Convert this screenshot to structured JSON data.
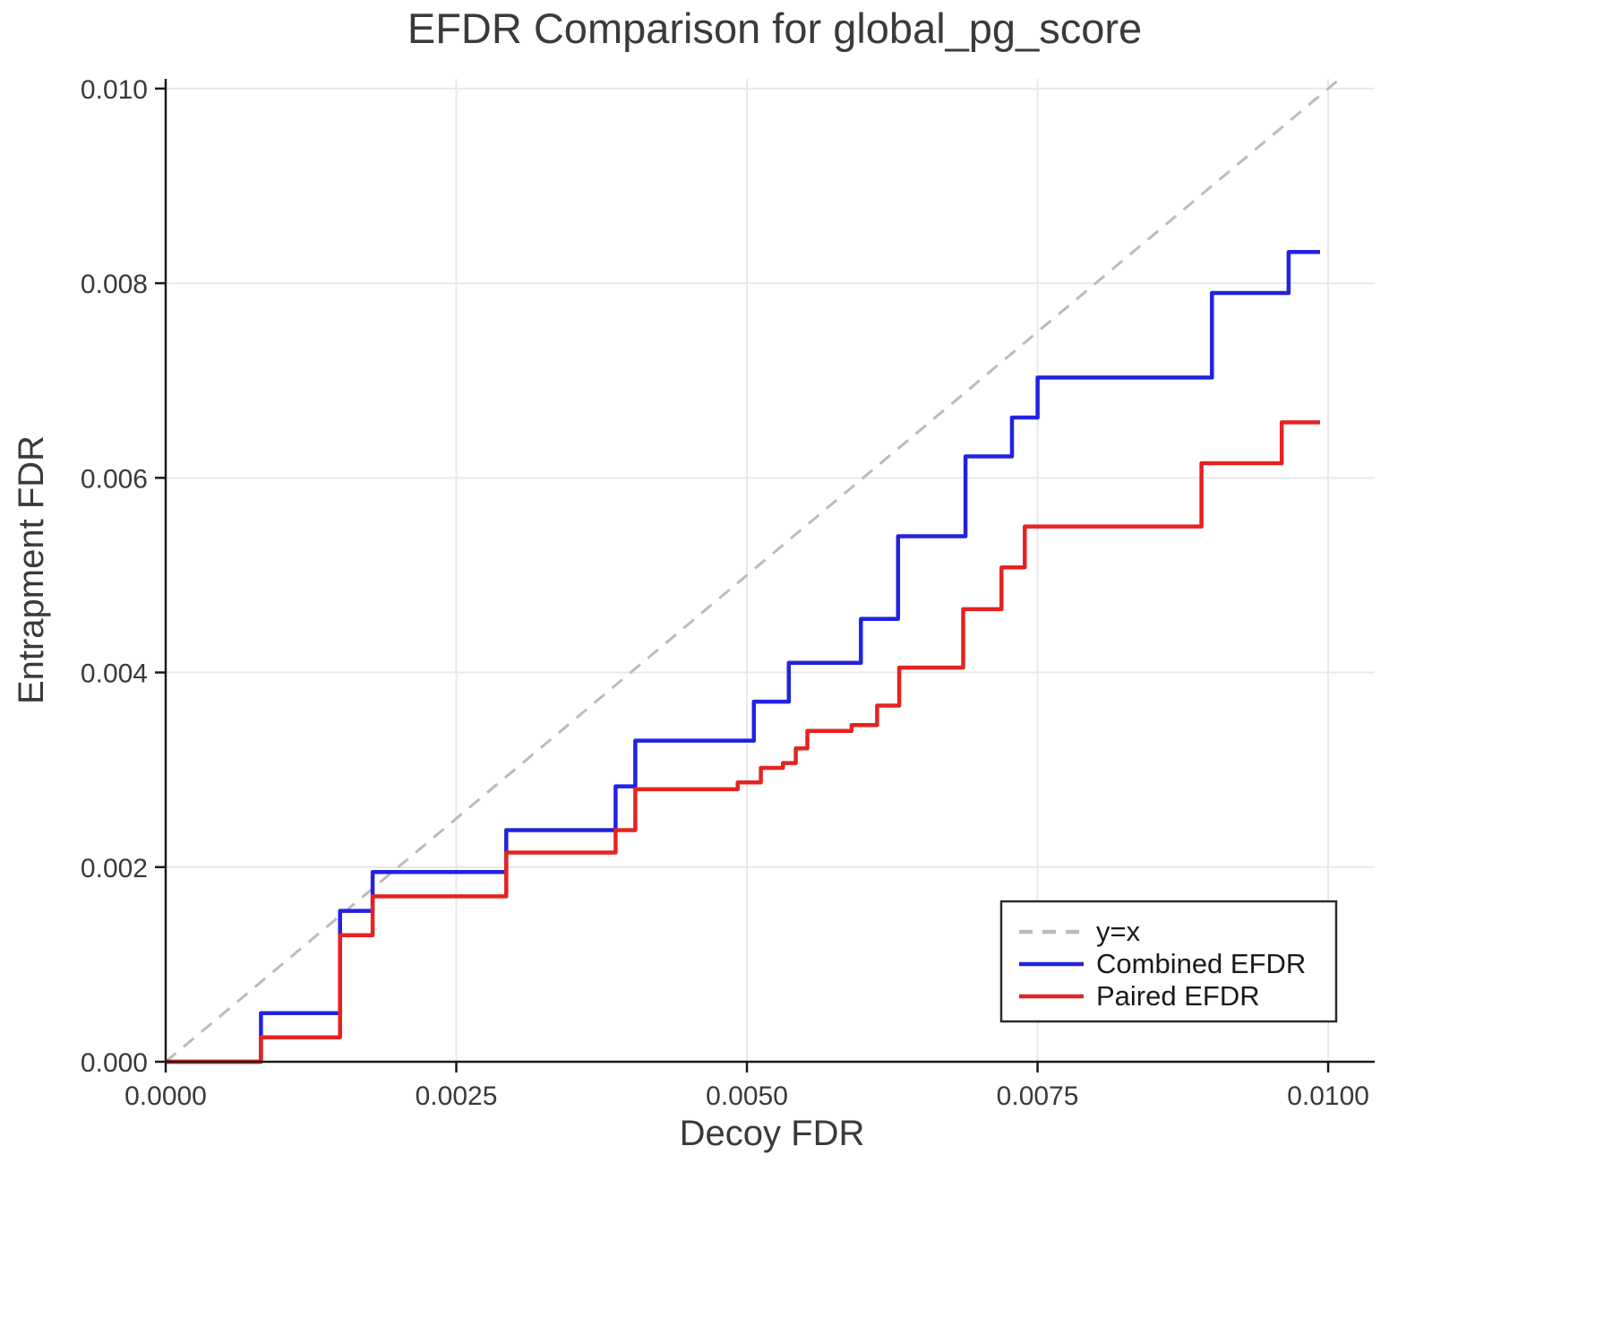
{
  "chart_data": {
    "type": "line",
    "title": "EFDR Comparison for global_pg_score",
    "xlabel": "Decoy FDR",
    "ylabel": "Entrapment FDR",
    "xlim": [
      0,
      0.0104
    ],
    "ylim": [
      0,
      0.0101
    ],
    "grid": true,
    "legend_position": "lower right",
    "x_ticks": [
      {
        "v": 0.0,
        "label": "0.0000"
      },
      {
        "v": 0.0025,
        "label": "0.0025"
      },
      {
        "v": 0.005,
        "label": "0.0050"
      },
      {
        "v": 0.0075,
        "label": "0.0075"
      },
      {
        "v": 0.01,
        "label": "0.0100"
      }
    ],
    "y_ticks": [
      {
        "v": 0.0,
        "label": "0.000"
      },
      {
        "v": 0.002,
        "label": "0.002"
      },
      {
        "v": 0.004,
        "label": "0.004"
      },
      {
        "v": 0.006,
        "label": "0.006"
      },
      {
        "v": 0.008,
        "label": "0.008"
      },
      {
        "v": 0.01,
        "label": "0.010"
      }
    ],
    "style": {
      "grid_color": "#e9e9e9",
      "spine_color": "#1a1a1a",
      "text_color": "#3a3a3a"
    },
    "reference_line": {
      "label": "y=x",
      "color": "#bbbbbb",
      "dash": true
    },
    "series": [
      {
        "name": "Combined EFDR",
        "color": "#2222e0",
        "data_name": "combined-efdr-line",
        "step": "hv",
        "points": [
          [
            0.0,
            0.0
          ],
          [
            0.00082,
            0.0005
          ],
          [
            0.0015,
            0.00155
          ],
          [
            0.00178,
            0.00195
          ],
          [
            0.00293,
            0.00238
          ],
          [
            0.00387,
            0.00283
          ],
          [
            0.00404,
            0.0033
          ],
          [
            0.00506,
            0.0037
          ],
          [
            0.00536,
            0.0041
          ],
          [
            0.00598,
            0.00455
          ],
          [
            0.0063,
            0.0054
          ],
          [
            0.00688,
            0.00622
          ],
          [
            0.00728,
            0.00662
          ],
          [
            0.0075,
            0.00703
          ],
          [
            0.009,
            0.0079
          ],
          [
            0.00966,
            0.00832
          ],
          [
            0.00993,
            0.00832
          ]
        ]
      },
      {
        "name": "Paired EFDR",
        "color": "#e62222",
        "data_name": "paired-efdr-line",
        "step": "hv",
        "points": [
          [
            0.0,
            0.0
          ],
          [
            0.00082,
            0.00025
          ],
          [
            0.0015,
            0.0013
          ],
          [
            0.00178,
            0.0017
          ],
          [
            0.00293,
            0.00215
          ],
          [
            0.00387,
            0.00238
          ],
          [
            0.00404,
            0.0028
          ],
          [
            0.00492,
            0.00287
          ],
          [
            0.00512,
            0.00302
          ],
          [
            0.00531,
            0.00307
          ],
          [
            0.00542,
            0.00322
          ],
          [
            0.00552,
            0.0034
          ],
          [
            0.0059,
            0.00346
          ],
          [
            0.00612,
            0.00366
          ],
          [
            0.00631,
            0.00405
          ],
          [
            0.00686,
            0.00465
          ],
          [
            0.00719,
            0.00508
          ],
          [
            0.00739,
            0.0055
          ],
          [
            0.00891,
            0.00615
          ],
          [
            0.0096,
            0.00657
          ],
          [
            0.00993,
            0.00657
          ]
        ]
      }
    ]
  }
}
